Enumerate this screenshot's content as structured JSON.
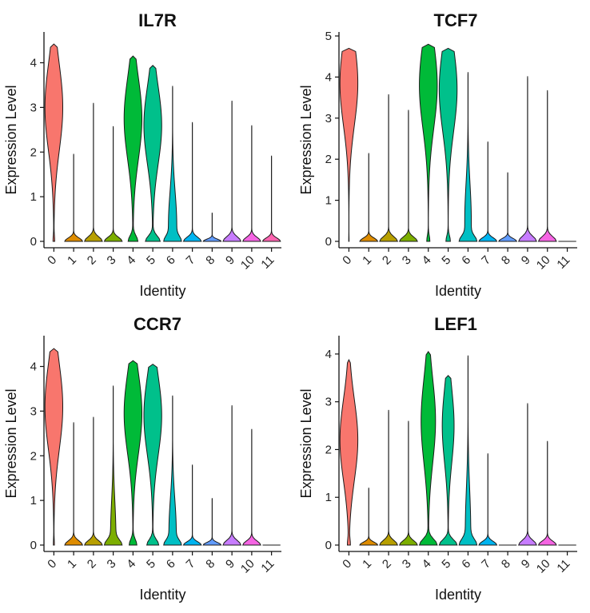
{
  "chart_data": [
    {
      "type": "violin",
      "title": "IL7R",
      "xlabel": "Identity",
      "ylabel": "Expression Level",
      "categories": [
        "0",
        "1",
        "2",
        "3",
        "4",
        "5",
        "6",
        "7",
        "8",
        "9",
        "10",
        "11"
      ],
      "ylim": [
        0,
        4.6
      ],
      "yticks": [
        0,
        1,
        2,
        3,
        4
      ],
      "max_values": [
        4.42,
        1.96,
        3.1,
        2.58,
        4.15,
        3.94,
        3.48,
        2.67,
        0.64,
        3.15,
        2.6,
        1.92
      ],
      "mode_values": [
        3.0,
        0,
        0,
        0,
        2.75,
        2.6,
        0.35,
        0,
        0,
        0,
        0,
        0
      ],
      "zero_fraction": [
        0.08,
        1,
        1,
        1,
        0.35,
        0.45,
        0.55,
        1,
        1,
        1,
        1,
        1
      ]
    },
    {
      "type": "violin",
      "title": "TCF7",
      "xlabel": "Identity",
      "ylabel": "Expression Level",
      "categories": [
        "0",
        "1",
        "2",
        "3",
        "4",
        "5",
        "6",
        "7",
        "8",
        "9",
        "10",
        "11"
      ],
      "ylim": [
        0,
        5.0
      ],
      "yticks": [
        0,
        1,
        2,
        3,
        4,
        5
      ],
      "max_values": [
        4.7,
        2.15,
        3.58,
        3.2,
        4.8,
        4.7,
        4.12,
        2.43,
        1.68,
        4.02,
        3.68,
        0.0
      ],
      "mode_values": [
        3.85,
        0,
        0,
        0,
        3.8,
        3.7,
        0.5,
        0,
        0,
        0,
        0,
        0
      ],
      "zero_fraction": [
        0.02,
        1,
        1,
        1,
        0.15,
        0.2,
        0.65,
        1,
        1,
        1,
        1,
        1
      ]
    },
    {
      "type": "violin",
      "title": "CCR7",
      "xlabel": "Identity",
      "ylabel": "Expression Level",
      "categories": [
        "0",
        "1",
        "2",
        "3",
        "4",
        "5",
        "6",
        "7",
        "8",
        "9",
        "10",
        "11"
      ],
      "ylim": [
        0,
        4.6
      ],
      "yticks": [
        0,
        1,
        2,
        3,
        4
      ],
      "max_values": [
        4.4,
        2.75,
        2.87,
        3.57,
        4.13,
        4.05,
        3.35,
        1.8,
        1.05,
        3.13,
        2.6,
        0.0
      ],
      "mode_values": [
        3.1,
        0,
        0,
        0.2,
        2.95,
        2.9,
        0.3,
        0,
        0,
        0,
        0,
        0
      ],
      "zero_fraction": [
        0.05,
        1,
        1,
        0.7,
        0.3,
        0.4,
        0.6,
        1,
        1,
        1,
        1,
        1
      ]
    },
    {
      "type": "violin",
      "title": "LEF1",
      "xlabel": "Identity",
      "ylabel": "Expression Level",
      "categories": [
        "0",
        "1",
        "2",
        "3",
        "4",
        "5",
        "6",
        "7",
        "8",
        "9",
        "10",
        "11"
      ],
      "ylim": [
        0,
        4.3
      ],
      "yticks": [
        0,
        1,
        2,
        3,
        4
      ],
      "max_values": [
        3.88,
        1.2,
        2.83,
        2.6,
        4.05,
        3.55,
        3.97,
        1.92,
        0.0,
        2.97,
        2.18,
        0.0
      ],
      "mode_values": [
        2.2,
        0,
        0,
        0,
        2.6,
        2.5,
        0.3,
        0,
        0,
        0,
        0,
        0
      ],
      "zero_fraction": [
        0.12,
        1,
        1,
        1,
        0.55,
        0.6,
        0.7,
        1,
        1,
        1,
        1,
        1
      ]
    }
  ],
  "colors": [
    "#F8766D",
    "#DE8C00",
    "#B79F00",
    "#7CAE00",
    "#00BA38",
    "#00C08B",
    "#00BFC4",
    "#00B4F0",
    "#619CFF",
    "#C77CFF",
    "#F564E3",
    "#FF64B0"
  ]
}
